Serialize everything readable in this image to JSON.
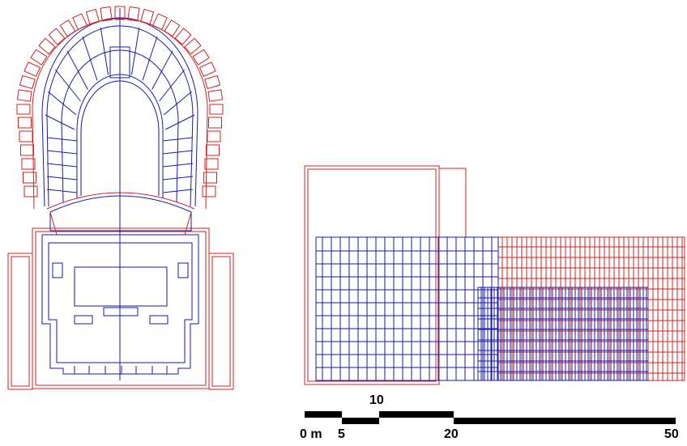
{
  "scale_bar": {
    "labels": [
      "0 m",
      "5",
      "10",
      "20",
      "50"
    ]
  }
}
